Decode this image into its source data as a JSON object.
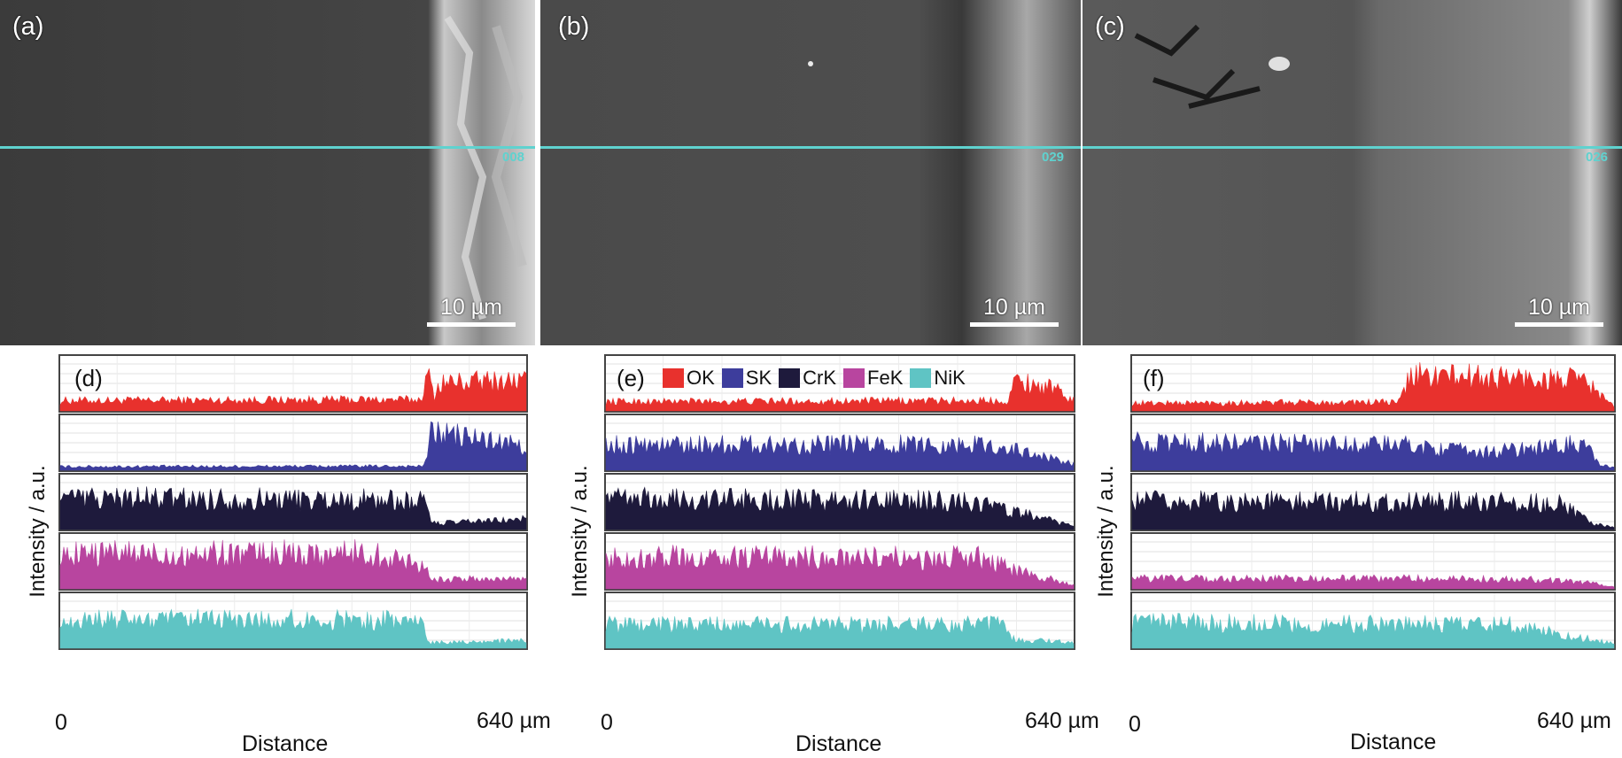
{
  "sem_panels": [
    {
      "label": "(a)",
      "line_id": "008",
      "scale": "10 µm"
    },
    {
      "label": "(b)",
      "line_id": "029",
      "scale": "10 µm"
    },
    {
      "label": "(c)",
      "line_id": "026",
      "scale": "10 µm"
    }
  ],
  "legend": [
    {
      "name": "OK",
      "color": "#e8312d"
    },
    {
      "name": "SK",
      "color": "#3d3d9c"
    },
    {
      "name": "CrK",
      "color": "#1e1a3c"
    },
    {
      "name": "FeK",
      "color": "#b8459f"
    },
    {
      "name": "NiK",
      "color": "#5fc4c4"
    }
  ],
  "eds_panels": [
    {
      "label": "(d)",
      "ylabel": "Intensity / a.u.",
      "x_start": "0",
      "x_end": "640 µm",
      "xlabel": "Distance"
    },
    {
      "label": "(e)",
      "ylabel": "Intensity / a.u.",
      "x_start": "0",
      "x_end": "640 µm",
      "xlabel": "Distance"
    },
    {
      "label": "(f)",
      "ylabel": "Intensity / a.u.",
      "x_start": "0",
      "x_end": "640 µm",
      "xlabel": "Distance"
    }
  ],
  "chart_data": [
    {
      "type": "area",
      "panel": "(d)",
      "xlabel": "Distance",
      "ylabel": "Intensity / a.u.",
      "xlim": [
        0,
        640
      ],
      "x_unit": "µm",
      "series": [
        {
          "name": "OK",
          "profile": [
            [
              0,
              0.2
            ],
            [
              495,
              0.22
            ],
            [
              505,
              0.7
            ],
            [
              515,
              0.25
            ],
            [
              520,
              0.55
            ],
            [
              640,
              0.6
            ]
          ]
        },
        {
          "name": "SK",
          "profile": [
            [
              0,
              0.07
            ],
            [
              500,
              0.08
            ],
            [
              510,
              0.75
            ],
            [
              580,
              0.6
            ],
            [
              640,
              0.45
            ]
          ]
        },
        {
          "name": "CrK",
          "profile": [
            [
              0,
              0.62
            ],
            [
              430,
              0.58
            ],
            [
              505,
              0.55
            ],
            [
              510,
              0.12
            ],
            [
              640,
              0.2
            ]
          ]
        },
        {
          "name": "FeK",
          "profile": [
            [
              0,
              0.68
            ],
            [
              420,
              0.7
            ],
            [
              495,
              0.5
            ],
            [
              515,
              0.18
            ],
            [
              640,
              0.2
            ]
          ]
        },
        {
          "name": "NiK",
          "profile": [
            [
              0,
              0.55
            ],
            [
              440,
              0.55
            ],
            [
              495,
              0.55
            ],
            [
              505,
              0.12
            ],
            [
              640,
              0.14
            ]
          ]
        }
      ]
    },
    {
      "type": "area",
      "panel": "(e)",
      "xlabel": "Distance",
      "ylabel": "Intensity / a.u.",
      "xlim": [
        0,
        640
      ],
      "x_unit": "µm",
      "series": [
        {
          "name": "OK",
          "profile": [
            [
              0,
              0.18
            ],
            [
              550,
              0.2
            ],
            [
              560,
              0.6
            ],
            [
              610,
              0.45
            ],
            [
              640,
              0.2
            ]
          ]
        },
        {
          "name": "SK",
          "profile": [
            [
              0,
              0.5
            ],
            [
              520,
              0.5
            ],
            [
              560,
              0.4
            ],
            [
              640,
              0.12
            ]
          ]
        },
        {
          "name": "CrK",
          "profile": [
            [
              0,
              0.6
            ],
            [
              500,
              0.55
            ],
            [
              560,
              0.35
            ],
            [
              640,
              0.06
            ]
          ]
        },
        {
          "name": "FeK",
          "profile": [
            [
              0,
              0.62
            ],
            [
              520,
              0.6
            ],
            [
              560,
              0.35
            ],
            [
              640,
              0.08
            ]
          ]
        },
        {
          "name": "NiK",
          "profile": [
            [
              0,
              0.45
            ],
            [
              540,
              0.45
            ],
            [
              560,
              0.15
            ],
            [
              640,
              0.12
            ]
          ]
        }
      ]
    },
    {
      "type": "area",
      "panel": "(f)",
      "xlabel": "Distance",
      "ylabel": "Intensity / a.u.",
      "xlim": [
        0,
        640
      ],
      "x_unit": "µm",
      "series": [
        {
          "name": "OK",
          "profile": [
            [
              0,
              0.15
            ],
            [
              355,
              0.17
            ],
            [
              370,
              0.7
            ],
            [
              600,
              0.6
            ],
            [
              640,
              0.08
            ]
          ]
        },
        {
          "name": "SK",
          "profile": [
            [
              0,
              0.55
            ],
            [
              360,
              0.5
            ],
            [
              460,
              0.35
            ],
            [
              560,
              0.45
            ],
            [
              600,
              0.55
            ],
            [
              620,
              0.1
            ],
            [
              640,
              0.05
            ]
          ]
        },
        {
          "name": "CrK",
          "profile": [
            [
              0,
              0.55
            ],
            [
              450,
              0.55
            ],
            [
              570,
              0.5
            ],
            [
              610,
              0.12
            ],
            [
              640,
              0.04
            ]
          ]
        },
        {
          "name": "FeK",
          "profile": [
            [
              0,
              0.2
            ],
            [
              500,
              0.2
            ],
            [
              610,
              0.12
            ],
            [
              640,
              0.05
            ]
          ]
        },
        {
          "name": "NiK",
          "profile": [
            [
              0,
              0.5
            ],
            [
              500,
              0.45
            ],
            [
              600,
              0.2
            ],
            [
              640,
              0.08
            ]
          ]
        }
      ]
    }
  ]
}
